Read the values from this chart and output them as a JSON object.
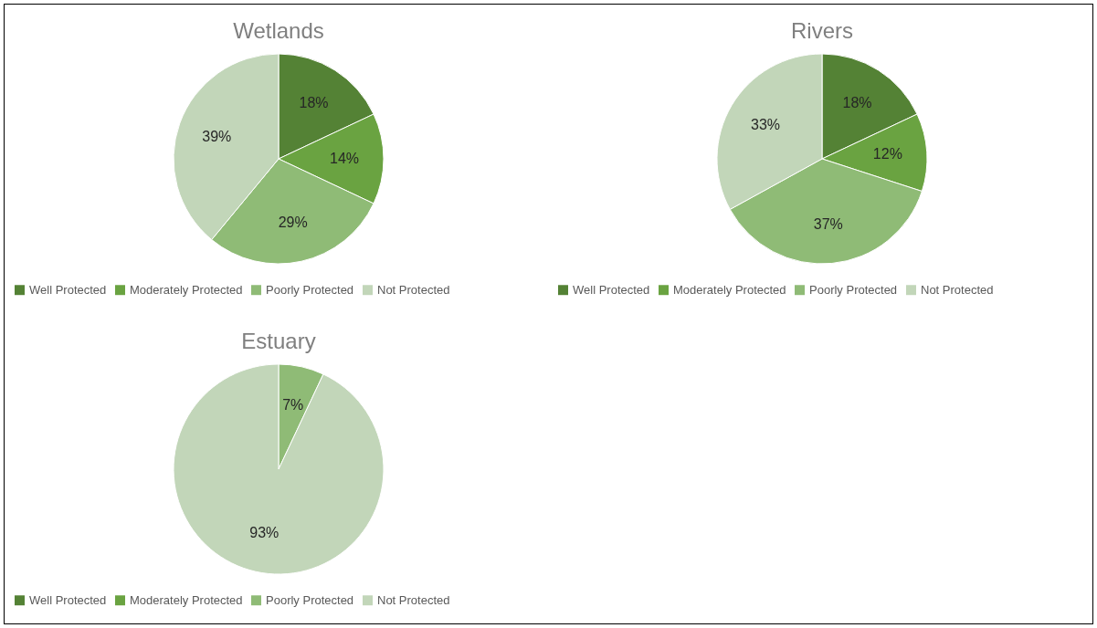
{
  "chart_data": [
    {
      "type": "pie",
      "title": "Wetlands",
      "categories": [
        "Well Protected",
        "Moderately Protected",
        "Poorly Protected",
        "Not Protected"
      ],
      "values": [
        18,
        14,
        29,
        39
      ],
      "colors": [
        "#548235",
        "#6aa341",
        "#8fbb76",
        "#c2d6b9"
      ],
      "value_labels": [
        "18%",
        "14%",
        "29%",
        "39%"
      ],
      "legend": "bottom"
    },
    {
      "type": "pie",
      "title": "Rivers",
      "categories": [
        "Well Protected",
        "Moderately Protected",
        "Poorly Protected",
        "Not Protected"
      ],
      "values": [
        18,
        12,
        37,
        33
      ],
      "colors": [
        "#548235",
        "#6aa341",
        "#8fbb76",
        "#c2d6b9"
      ],
      "value_labels": [
        "18%",
        "12%",
        "37%",
        "33%"
      ],
      "legend": "bottom"
    },
    {
      "type": "pie",
      "title": "Estuary",
      "categories": [
        "Well Protected",
        "Moderately Protected",
        "Poorly Protected",
        "Not Protected"
      ],
      "values": [
        0,
        0,
        7,
        93
      ],
      "colors": [
        "#548235",
        "#6aa341",
        "#8fbb76",
        "#c2d6b9"
      ],
      "value_labels": [
        null,
        null,
        "7%",
        "93%"
      ],
      "legend": "bottom"
    }
  ]
}
